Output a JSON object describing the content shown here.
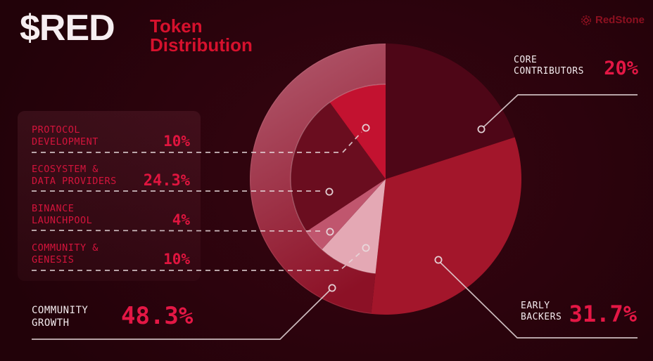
{
  "header": {
    "ticker": "$RED",
    "subtitle_line1": "Token",
    "subtitle_line2": "Distribution",
    "brand": "RedStone"
  },
  "colors": {
    "background": "#2c030d",
    "accent_red": "#d6112d",
    "value_red": "#e0153f",
    "label_red": "#d4143c",
    "white_text": "#f3ebee",
    "brand_red": "#8c1020",
    "connector": "#e8dadd"
  },
  "legend": {
    "items": [
      {
        "line1": "PROTOCOL",
        "line2": "DEVELOPMENT",
        "value": "10%"
      },
      {
        "line1": "ECOSYSTEM &",
        "line2": "DATA PROVIDERS",
        "value": "24.3%"
      },
      {
        "line1": "BINANCE",
        "line2": "LAUNCHPOOL",
        "value": "4%"
      },
      {
        "line1": "COMMUNITY &",
        "line2": "GENESIS",
        "value": "10%"
      }
    ]
  },
  "callouts": {
    "core": {
      "line1": "CORE",
      "line2": "CONTRIBUTORS",
      "value": "20%"
    },
    "early": {
      "line1": "EARLY",
      "line2": "BACKERS",
      "value": "31.7%"
    },
    "community": {
      "line1": "COMMUNITY",
      "line2": "GROWTH",
      "value": "48.3%"
    }
  },
  "chart_data": {
    "type": "pie",
    "title": "$RED Token Distribution",
    "units": "%",
    "start_angle_deg": 0,
    "segments": [
      {
        "label": "CORE CONTRIBUTORS",
        "value": 20,
        "display": "20%",
        "color": "#4e0617",
        "kind": "full-wedge"
      },
      {
        "label": "EARLY BACKERS",
        "value": 31.7,
        "display": "31.7%",
        "color": "#a3162b",
        "kind": "full-wedge"
      },
      {
        "label": "COMMUNITY GROWTH",
        "value": 48.3,
        "display": "48.3%",
        "color_top": "#b25a6e",
        "color_bottom": "#8c1126",
        "kind": "outer-ring"
      }
    ],
    "community_growth_breakdown": [
      {
        "label": "COMMUNITY & GENESIS",
        "value": 10,
        "display": "10%",
        "color": "#e4a8b4"
      },
      {
        "label": "BINANCE LAUNCHPOOL",
        "value": 4,
        "display": "4%",
        "color": "#c0566e"
      },
      {
        "label": "ECOSYSTEM & DATA PROVIDERS",
        "value": 24.3,
        "display": "24.3%",
        "color": "#6a0d1f"
      },
      {
        "label": "PROTOCOL DEVELOPMENT",
        "value": 10,
        "display": "10%",
        "color": "#c31230"
      }
    ]
  }
}
